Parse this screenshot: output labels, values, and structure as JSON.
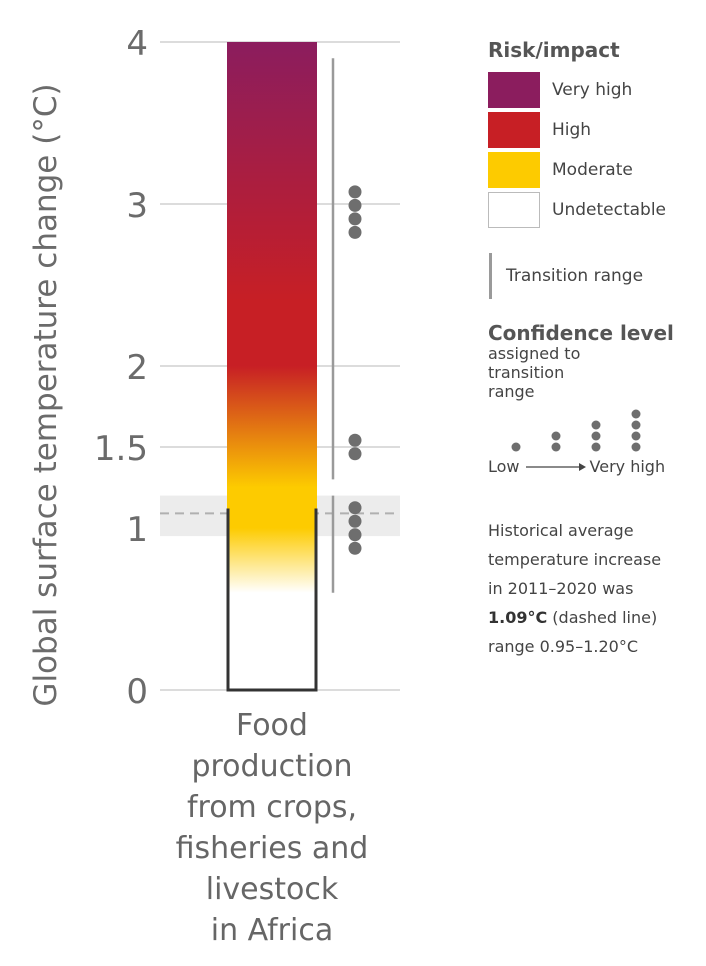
{
  "chart_data": {
    "type": "bar",
    "ylabel": "Global surface temperature change (°C)",
    "y_ticks": [
      0,
      1,
      1.5,
      2,
      3,
      4
    ],
    "y_tick_labels": [
      "0",
      "1",
      "1.5",
      "2",
      "3",
      "4"
    ],
    "ylim": [
      0,
      4
    ],
    "categories": [
      "Food production from crops, fisheries and livestock in Africa"
    ],
    "category_label_lines": [
      "Food",
      "production",
      "from crops,",
      "fisheries and",
      "livestock",
      "in Africa"
    ],
    "risk_gradient": [
      {
        "temperature": 0.0,
        "level": "Undetectable"
      },
      {
        "temperature": 0.6,
        "level": "Undetectable"
      },
      {
        "temperature": 1.0,
        "level": "Moderate"
      },
      {
        "temperature": 1.25,
        "level": "Moderate"
      },
      {
        "temperature": 2.0,
        "level": "High"
      },
      {
        "temperature": 2.4,
        "level": "High"
      },
      {
        "temperature": 4.0,
        "level": "Very high"
      }
    ],
    "outlined_segment": [
      0,
      1.12
    ],
    "transition_ranges": [
      {
        "from": 0.6,
        "to": 1.2,
        "confidence_dots": 4
      },
      {
        "from": 1.3,
        "to": 3.9,
        "confidence_dots": 0
      }
    ],
    "confidence_markers": [
      {
        "center": 1.0,
        "dots": 4
      },
      {
        "center": 1.5,
        "dots": 2
      },
      {
        "center": 2.95,
        "dots": 4
      }
    ],
    "historical": {
      "mean": 1.09,
      "range": [
        0.95,
        1.2
      ]
    }
  },
  "legend": {
    "risk_title": "Risk/impact",
    "risk_items": [
      {
        "label": "Very high",
        "color": "#8b1d5e"
      },
      {
        "label": "High",
        "color": "#c71f25"
      },
      {
        "label": "Moderate",
        "color": "#fdcb00"
      },
      {
        "label": "Undetectable",
        "color": "#ffffff"
      }
    ],
    "transition_label": "Transition range",
    "confidence_title": "Confidence level",
    "confidence_sub": "assigned to transition range",
    "confidence_low": "Low",
    "confidence_high": "Very high",
    "confidence_scale": [
      1,
      2,
      3,
      4
    ]
  },
  "note": {
    "line1": "Historical average",
    "line2": "temperature increase",
    "line3": "in 2011–2020 was",
    "value": "1.09°C",
    "suffix": " (dashed line)",
    "line5": "range 0.95–1.20°C"
  }
}
